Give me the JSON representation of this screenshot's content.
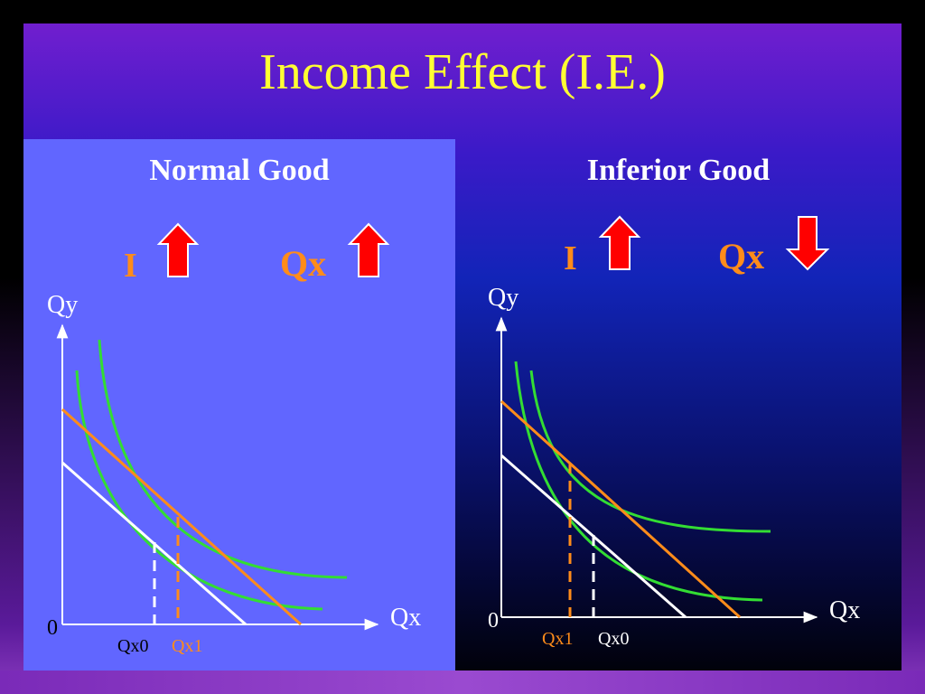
{
  "title": "Income Effect  (I.E.)",
  "colors": {
    "title": "#ffff33",
    "left_panel": "#6166ff",
    "budget_line_initial": "#ffffff",
    "budget_line_new": "#ff8c1a",
    "indifference_curve": "#33dd33",
    "arrow": "#ff0000",
    "symbol_label": "#ff8c1a"
  },
  "panels": [
    {
      "heading": "Normal Good",
      "income_symbol": "I",
      "income_arrow": "up-arrow-icon",
      "quantity_symbol": "Qx",
      "quantity_arrow": "up-arrow-icon",
      "y_axis_label": "Qy",
      "x_axis_label": "Qx",
      "origin_label": "0",
      "tick_labels": [
        "Qx0",
        "Qx1"
      ]
    },
    {
      "heading": "Inferior Good",
      "income_symbol": "I",
      "income_arrow": "up-arrow-icon",
      "quantity_symbol": "Qx",
      "quantity_arrow": "down-arrow-icon",
      "y_axis_label": "Qy",
      "x_axis_label": "Qx",
      "origin_label": "0",
      "tick_labels": [
        "Qx1",
        "Qx0"
      ]
    }
  ]
}
